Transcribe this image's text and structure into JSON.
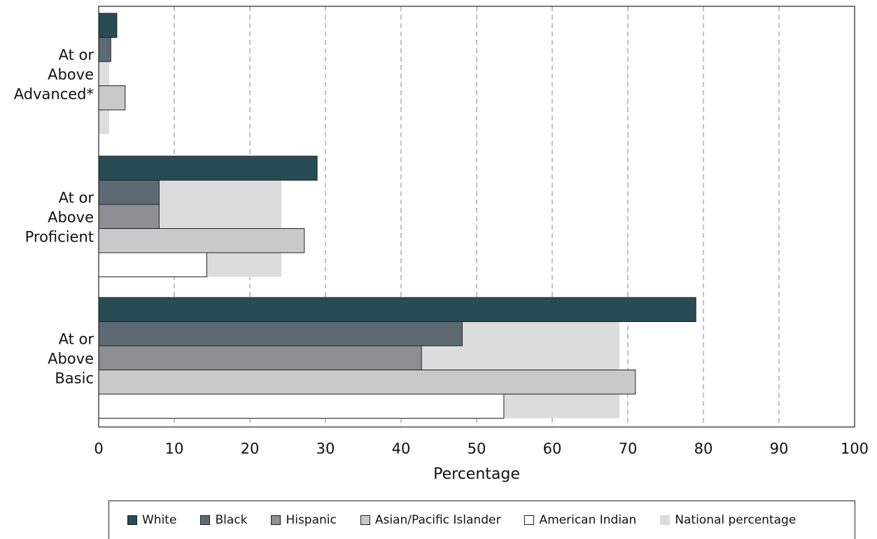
{
  "chart_data": {
    "type": "bar",
    "orientation": "horizontal",
    "xlabel": "Percentage",
    "xlim": [
      0,
      100
    ],
    "xticks": [
      "0",
      "10",
      "20",
      "30",
      "40",
      "50",
      "60",
      "70",
      "80",
      "90",
      "100"
    ],
    "grid": "vertical dashed",
    "legend_position": "bottom",
    "categories": [
      "At or Above Advanced*",
      "At or Above Proficient",
      "At or Above Basic"
    ],
    "category_label_lines": [
      [
        "At or",
        "Above",
        "Advanced*"
      ],
      [
        "At or",
        "Above",
        "Proficient"
      ],
      [
        "At or",
        "Above",
        "Basic"
      ]
    ],
    "series": [
      {
        "name": "White",
        "color": "#264b55",
        "values": [
          2.4,
          28.9,
          79.0
        ]
      },
      {
        "name": "Black",
        "color": "#5e6a72",
        "values": [
          1.6,
          8.0,
          48.1
        ]
      },
      {
        "name": "Hispanic",
        "color": "#8e8e93",
        "values": [
          0,
          8.0,
          42.7
        ]
      },
      {
        "name": "Asian/Pacific Islander",
        "color": "#c9c9c9",
        "values": [
          3.5,
          27.2,
          71.0
        ]
      },
      {
        "name": "American Indian",
        "color": "#ffffff",
        "values": [
          0,
          14.3,
          53.6
        ]
      }
    ],
    "national": {
      "name": "National percentage",
      "color": "#dcdcdc",
      "values": [
        1.4,
        24.2,
        68.9
      ]
    }
  }
}
